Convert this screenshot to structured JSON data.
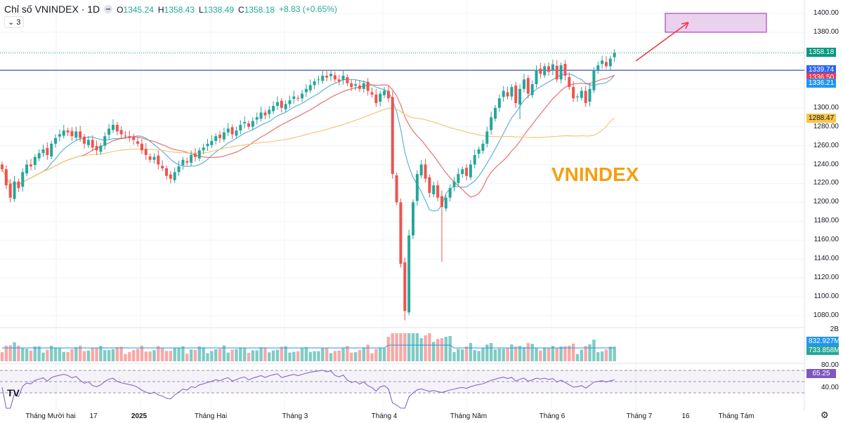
{
  "header": {
    "title": "Chỉ số VNINDEX · 1D",
    "open_label": "O",
    "open": "1345.24",
    "high_label": "H",
    "high": "1358.43",
    "low_label": "L",
    "low": "1338.49",
    "close_label": "C",
    "close": "1358.18",
    "change": "+8.83 (+0.65%)",
    "collapse": "⌄ 3"
  },
  "watermark": "VNINDEX",
  "price_axis": [
    "1400.00",
    "1380.00",
    "1300.00",
    "1280.00",
    "1260.00",
    "1240.00",
    "1220.00",
    "1200.00",
    "1180.00",
    "1160.00",
    "1140.00",
    "1120.00",
    "1100.00",
    "1080.00"
  ],
  "price_tags": [
    {
      "text": "1358.18",
      "color": "#089981"
    },
    {
      "text": "1339.74",
      "color": "#2962ff"
    },
    {
      "text": "1336.50",
      "color": "#f23645"
    },
    {
      "text": "1336.21",
      "color": "#2196f3"
    },
    {
      "text": "1288.47",
      "color": "#f7c548"
    }
  ],
  "volume_axis": {
    "top": "2B",
    "tag1": "832.927M",
    "tag1_color": "#2196f3",
    "tag2": "733.858M",
    "tag2_color": "#26a69a"
  },
  "rsi_axis": {
    "top": "80.00",
    "value": "65.25",
    "bottom": "40.00",
    "color": "#7e57c2"
  },
  "time_axis": [
    "Tháng Mười hai",
    "17",
    "2025",
    "Tháng Hai",
    "Tháng 3",
    "Tháng 4",
    "Tháng Năm",
    "Tháng 6",
    "Tháng 7",
    "16",
    "Tháng Tám"
  ],
  "logo": "TV",
  "settings_icon": "gear-icon",
  "chart_data": {
    "type": "candlestick",
    "title": "Chỉ số VNINDEX · 1D",
    "ylim": [
      1070,
      1410
    ],
    "horizontal_line": 1339.74,
    "target_zone": [
      1380,
      1400
    ],
    "closes": [
      1235,
      1218,
      1205,
      1222,
      1215,
      1232,
      1240,
      1238,
      1248,
      1252,
      1256,
      1250,
      1262,
      1268,
      1272,
      1276,
      1274,
      1270,
      1275,
      1268,
      1262,
      1266,
      1258,
      1255,
      1260,
      1270,
      1278,
      1282,
      1275,
      1272,
      1270,
      1268,
      1266,
      1262,
      1255,
      1250,
      1245,
      1248,
      1240,
      1236,
      1228,
      1225,
      1232,
      1238,
      1245,
      1242,
      1250,
      1248,
      1255,
      1258,
      1262,
      1265,
      1270,
      1268,
      1274,
      1278,
      1272,
      1276,
      1282,
      1285,
      1280,
      1286,
      1290,
      1295,
      1292,
      1298,
      1302,
      1306,
      1300,
      1304,
      1308,
      1312,
      1310,
      1315,
      1320,
      1324,
      1328,
      1330,
      1334,
      1332,
      1336,
      1330,
      1328,
      1334,
      1326,
      1322,
      1325,
      1320,
      1326,
      1318,
      1314,
      1305,
      1315,
      1318,
      1310,
      1230,
      1200,
      1135,
      1085,
      1165,
      1200,
      1230,
      1240,
      1225,
      1210,
      1218,
      1205,
      1195,
      1205,
      1215,
      1222,
      1230,
      1235,
      1228,
      1240,
      1250,
      1256,
      1262,
      1275,
      1290,
      1300,
      1310,
      1318,
      1312,
      1322,
      1305,
      1320,
      1330,
      1315,
      1325,
      1340,
      1336,
      1344,
      1338,
      1346,
      1330,
      1345,
      1334,
      1322,
      1310,
      1312,
      1318,
      1305,
      1320,
      1340,
      1345,
      1350,
      1344,
      1352,
      1358.18
    ],
    "low_overrides": {
      "98": 1075,
      "107": 1137,
      "126": 1288
    }
  }
}
